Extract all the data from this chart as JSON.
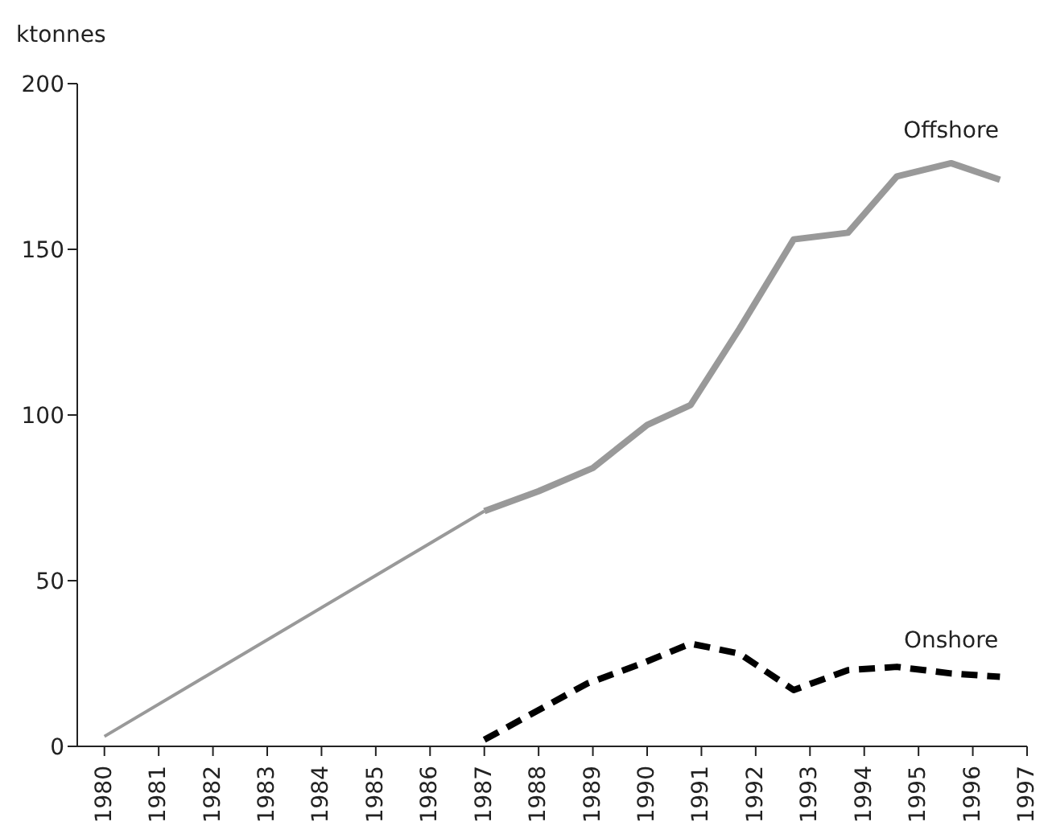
{
  "chart_data": {
    "type": "line",
    "ylabel": "ktonnes",
    "xlim": [
      1979.5,
      1997
    ],
    "xticks": [
      1980,
      1981,
      1982,
      1983,
      1984,
      1985,
      1986,
      1987,
      1988,
      1989,
      1990,
      1991,
      1992,
      1993,
      1994,
      1995,
      1996,
      1997
    ],
    "ylim": [
      0,
      200
    ],
    "yticks": [
      0,
      50,
      100,
      150,
      200
    ],
    "grid": false,
    "marker": "none",
    "series": [
      {
        "color": "#999999",
        "line_style": "solid",
        "x": [
          1980,
          1987
        ],
        "values": [
          3,
          71
        ]
      },
      {
        "name": "Offshore",
        "color": "#999999",
        "line_style": "solid",
        "x": [
          1987,
          1988,
          1989,
          1990,
          1990.8,
          1991.7,
          1992.7,
          1993.7,
          1994.6,
          1995.6,
          1996.5
        ],
        "values": [
          71,
          77,
          84,
          97,
          103,
          126,
          153,
          155,
          172,
          176,
          171
        ]
      },
      {
        "name": "Onshore",
        "color": "#000000",
        "line_style": "dashed",
        "x": [
          1987,
          1988.9,
          1989.9,
          1990.8,
          1991.7,
          1992.7,
          1993.7,
          1994.6,
          1995.6,
          1996.5
        ],
        "values": [
          2,
          19,
          25,
          31,
          28,
          17,
          23,
          24,
          22,
          21
        ]
      }
    ]
  }
}
